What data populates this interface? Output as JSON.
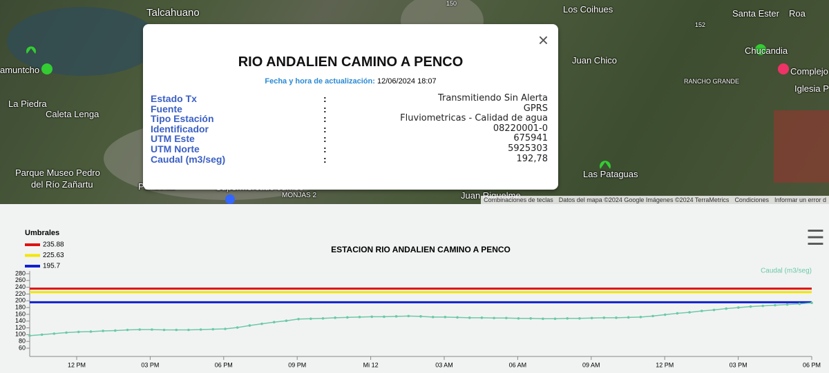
{
  "map": {
    "labels": [
      "Talcahuano",
      "Los Coihues",
      "Santa Ester",
      "Roa",
      "amuntcho",
      "La Piedra",
      "Caleta Lenga",
      "Juan Chico",
      "Chucandia",
      "Complejo",
      "Iglesia P",
      "RANCHO GRANDE",
      "Parque Museo Pedro",
      "del Río Zañartu",
      "Peñuelas",
      "Supermercado Jumbo",
      "MONJAS 2",
      "Juan Riquelme",
      "Las Pataguas",
      "150",
      "152"
    ],
    "footer": [
      "Combinaciones de teclas",
      "Datos del mapa ©2024 Google Imágenes ©2024 TerraMetrics",
      "Condiciones",
      "Informar un error d"
    ]
  },
  "popup": {
    "title": "RIO ANDALIEN CAMINO A PENCO",
    "updated_label": "Fecha y hora de actualización:",
    "updated_value": "12/06/2024 18:07",
    "separator": ":",
    "rows": [
      [
        "Estado Tx",
        "Transmitiendo Sin Alerta"
      ],
      [
        "Fuente",
        "GPRS"
      ],
      [
        "Tipo Estación",
        "Fluviometricas - Calidad de agua"
      ],
      [
        "Identificador",
        "08220001-0"
      ],
      [
        "UTM Este",
        "675941"
      ],
      [
        "UTM Norte",
        "5925303"
      ],
      [
        "Caudal (m3/seg)",
        "192,78"
      ]
    ]
  },
  "chart_data": {
    "type": "line",
    "title": "ESTACION RIO ANDALIEN CAMINO A PENCO",
    "legend_title": "Umbrales",
    "thresholds": [
      {
        "value": 235.88,
        "color": "#e01010"
      },
      {
        "value": 225.63,
        "color": "#f2e600"
      },
      {
        "value": 195.7,
        "color": "#1020d0"
      }
    ],
    "series": [
      {
        "name": "Caudal (m3/seg)",
        "color": "#6cc9a6",
        "values": [
          97,
          100,
          103,
          106,
          108,
          109,
          111,
          112,
          114,
          115,
          115,
          114,
          114,
          114,
          115,
          116,
          117,
          121,
          127,
          132,
          137,
          141,
          146,
          147,
          148,
          150,
          151,
          152,
          153,
          153,
          154,
          155,
          154,
          152,
          152,
          151,
          150,
          150,
          149,
          149,
          148,
          148,
          147,
          147,
          148,
          148,
          149,
          150,
          150,
          151,
          152,
          155,
          159,
          163,
          166,
          170,
          173,
          177,
          180,
          183,
          185,
          187,
          189,
          191,
          194
        ]
      }
    ],
    "x_tick_labels": [
      "12 PM",
      "03 PM",
      "06 PM",
      "09 PM",
      "Mi 12",
      "03 AM",
      "06 AM",
      "09 AM",
      "12 PM",
      "03 PM",
      "06 PM"
    ],
    "ylim": [
      60,
      280
    ],
    "yticks": [
      60,
      80,
      100,
      120,
      140,
      160,
      180,
      200,
      220,
      240,
      260,
      280
    ]
  }
}
